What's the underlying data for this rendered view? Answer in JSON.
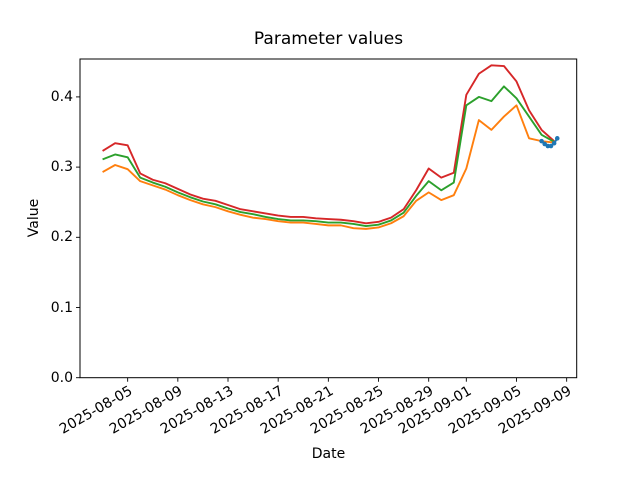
{
  "chart_data": {
    "type": "line",
    "title": "Parameter values",
    "xlabel": "Date",
    "ylabel": "Value",
    "grid": false,
    "legend": "none",
    "ylim": [
      0,
      0.454
    ],
    "y_ticks": [
      0.0,
      0.1,
      0.2,
      0.3,
      0.4
    ],
    "y_tick_labels": [
      "0.0",
      "0.1",
      "0.2",
      "0.3",
      "0.4"
    ],
    "x_tick_labels": [
      "2025-08-05",
      "2025-08-09",
      "2025-08-13",
      "2025-08-17",
      "2025-08-21",
      "2025-08-25",
      "2025-08-29",
      "2025-09-01",
      "2025-09-05",
      "2025-09-09"
    ],
    "x": [
      "2025-08-03",
      "2025-08-04",
      "2025-08-05",
      "2025-08-06",
      "2025-08-07",
      "2025-08-08",
      "2025-08-09",
      "2025-08-10",
      "2025-08-11",
      "2025-08-12",
      "2025-08-13",
      "2025-08-14",
      "2025-08-15",
      "2025-08-16",
      "2025-08-17",
      "2025-08-18",
      "2025-08-19",
      "2025-08-20",
      "2025-08-21",
      "2025-08-22",
      "2025-08-23",
      "2025-08-24",
      "2025-08-25",
      "2025-08-26",
      "2025-08-27",
      "2025-08-28",
      "2025-08-29",
      "2025-08-30",
      "2025-08-31",
      "2025-09-01",
      "2025-09-02",
      "2025-09-03",
      "2025-09-04",
      "2025-09-05",
      "2025-09-06",
      "2025-09-07",
      "2025-09-08"
    ],
    "series": [
      {
        "name": "red-series",
        "color": "#d62728",
        "values": [
          0.323,
          0.334,
          0.331,
          0.291,
          0.282,
          0.277,
          0.269,
          0.261,
          0.255,
          0.252,
          0.246,
          0.24,
          0.237,
          0.234,
          0.231,
          0.229,
          0.229,
          0.227,
          0.226,
          0.225,
          0.223,
          0.22,
          0.222,
          0.228,
          0.24,
          0.267,
          0.298,
          0.285,
          0.292,
          0.403,
          0.433,
          0.445,
          0.444,
          0.422,
          0.381,
          0.353,
          0.337
        ]
      },
      {
        "name": "green-series",
        "color": "#2ca02c",
        "values": [
          0.311,
          0.318,
          0.314,
          0.285,
          0.278,
          0.272,
          0.264,
          0.257,
          0.251,
          0.247,
          0.241,
          0.236,
          0.233,
          0.229,
          0.226,
          0.224,
          0.224,
          0.223,
          0.221,
          0.221,
          0.219,
          0.216,
          0.218,
          0.224,
          0.235,
          0.259,
          0.28,
          0.267,
          0.278,
          0.388,
          0.4,
          0.394,
          0.415,
          0.398,
          0.372,
          0.346,
          0.336
        ]
      },
      {
        "name": "orange-series",
        "color": "#ff7f0e",
        "values": [
          0.293,
          0.303,
          0.297,
          0.28,
          0.274,
          0.268,
          0.26,
          0.253,
          0.247,
          0.243,
          0.237,
          0.232,
          0.228,
          0.226,
          0.223,
          0.221,
          0.221,
          0.219,
          0.217,
          0.217,
          0.213,
          0.212,
          0.214,
          0.22,
          0.23,
          0.252,
          0.264,
          0.253,
          0.26,
          0.298,
          0.367,
          0.353,
          0.372,
          0.388,
          0.341,
          0.337,
          0.335
        ]
      }
    ],
    "overlay_series": {
      "name": "blue-marker-series",
      "color": "#1f77b4",
      "marker": "dot",
      "x_days_from_start": [
        35,
        35.25,
        35.5,
        35.75,
        36,
        36.25
      ],
      "values": [
        0.337,
        0.333,
        0.33,
        0.33,
        0.334,
        0.341
      ]
    }
  }
}
